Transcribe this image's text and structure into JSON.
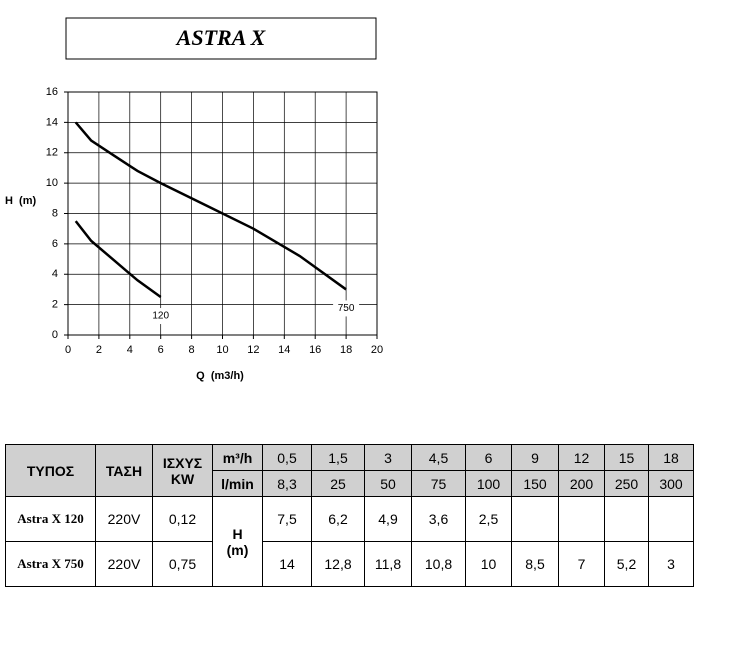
{
  "chart_data": {
    "type": "line",
    "title": "ASTRA X",
    "y_label": "H  (m)",
    "x_label": "Q  (m3/h)",
    "x": [
      0.5,
      1.5,
      3,
      4.5,
      6,
      9,
      12,
      15,
      18
    ],
    "series": [
      {
        "name": "120",
        "color": "#000000",
        "values": [
          7.5,
          6.2,
          4.9,
          3.6,
          2.5,
          null,
          null,
          null,
          null
        ]
      },
      {
        "name": "750",
        "color": "#000000",
        "values": [
          14,
          12.8,
          11.8,
          10.8,
          10,
          8.5,
          7,
          5.2,
          3
        ]
      }
    ],
    "xlim": [
      0,
      20
    ],
    "xticks": [
      0,
      2,
      4,
      6,
      8,
      10,
      12,
      14,
      16,
      18,
      20
    ],
    "ylim": [
      0,
      16
    ],
    "yticks": [
      0,
      2,
      4,
      6,
      8,
      10,
      12,
      14,
      16
    ],
    "grid": true
  },
  "table": {
    "headers": {
      "type": "ΤΥΠΟΣ",
      "voltage": "ΤΑΣΗ",
      "power": [
        "ΙΣΧΥΣ",
        "KW"
      ],
      "unit_m3h": "m³/h",
      "unit_lmin": "l/min",
      "head": [
        "H",
        "(m)"
      ]
    },
    "flow_m3h": [
      "0,5",
      "1,5",
      "3",
      "4,5",
      "6",
      "9",
      "12",
      "15",
      "18"
    ],
    "flow_lmin": [
      "8,3",
      "25",
      "50",
      "75",
      "100",
      "150",
      "200",
      "250",
      "300"
    ],
    "rows": [
      {
        "model": "Astra X 120",
        "voltage": "220V",
        "power": "0,12",
        "head": [
          "7,5",
          "6,2",
          "4,9",
          "3,6",
          "2,5"
        ]
      },
      {
        "model": "Astra X 750",
        "voltage": "220V",
        "power": "0,75",
        "head": [
          "14",
          "12,8",
          "11,8",
          "10,8",
          "10",
          "8,5",
          "7",
          "5,2",
          "3"
        ]
      }
    ]
  }
}
